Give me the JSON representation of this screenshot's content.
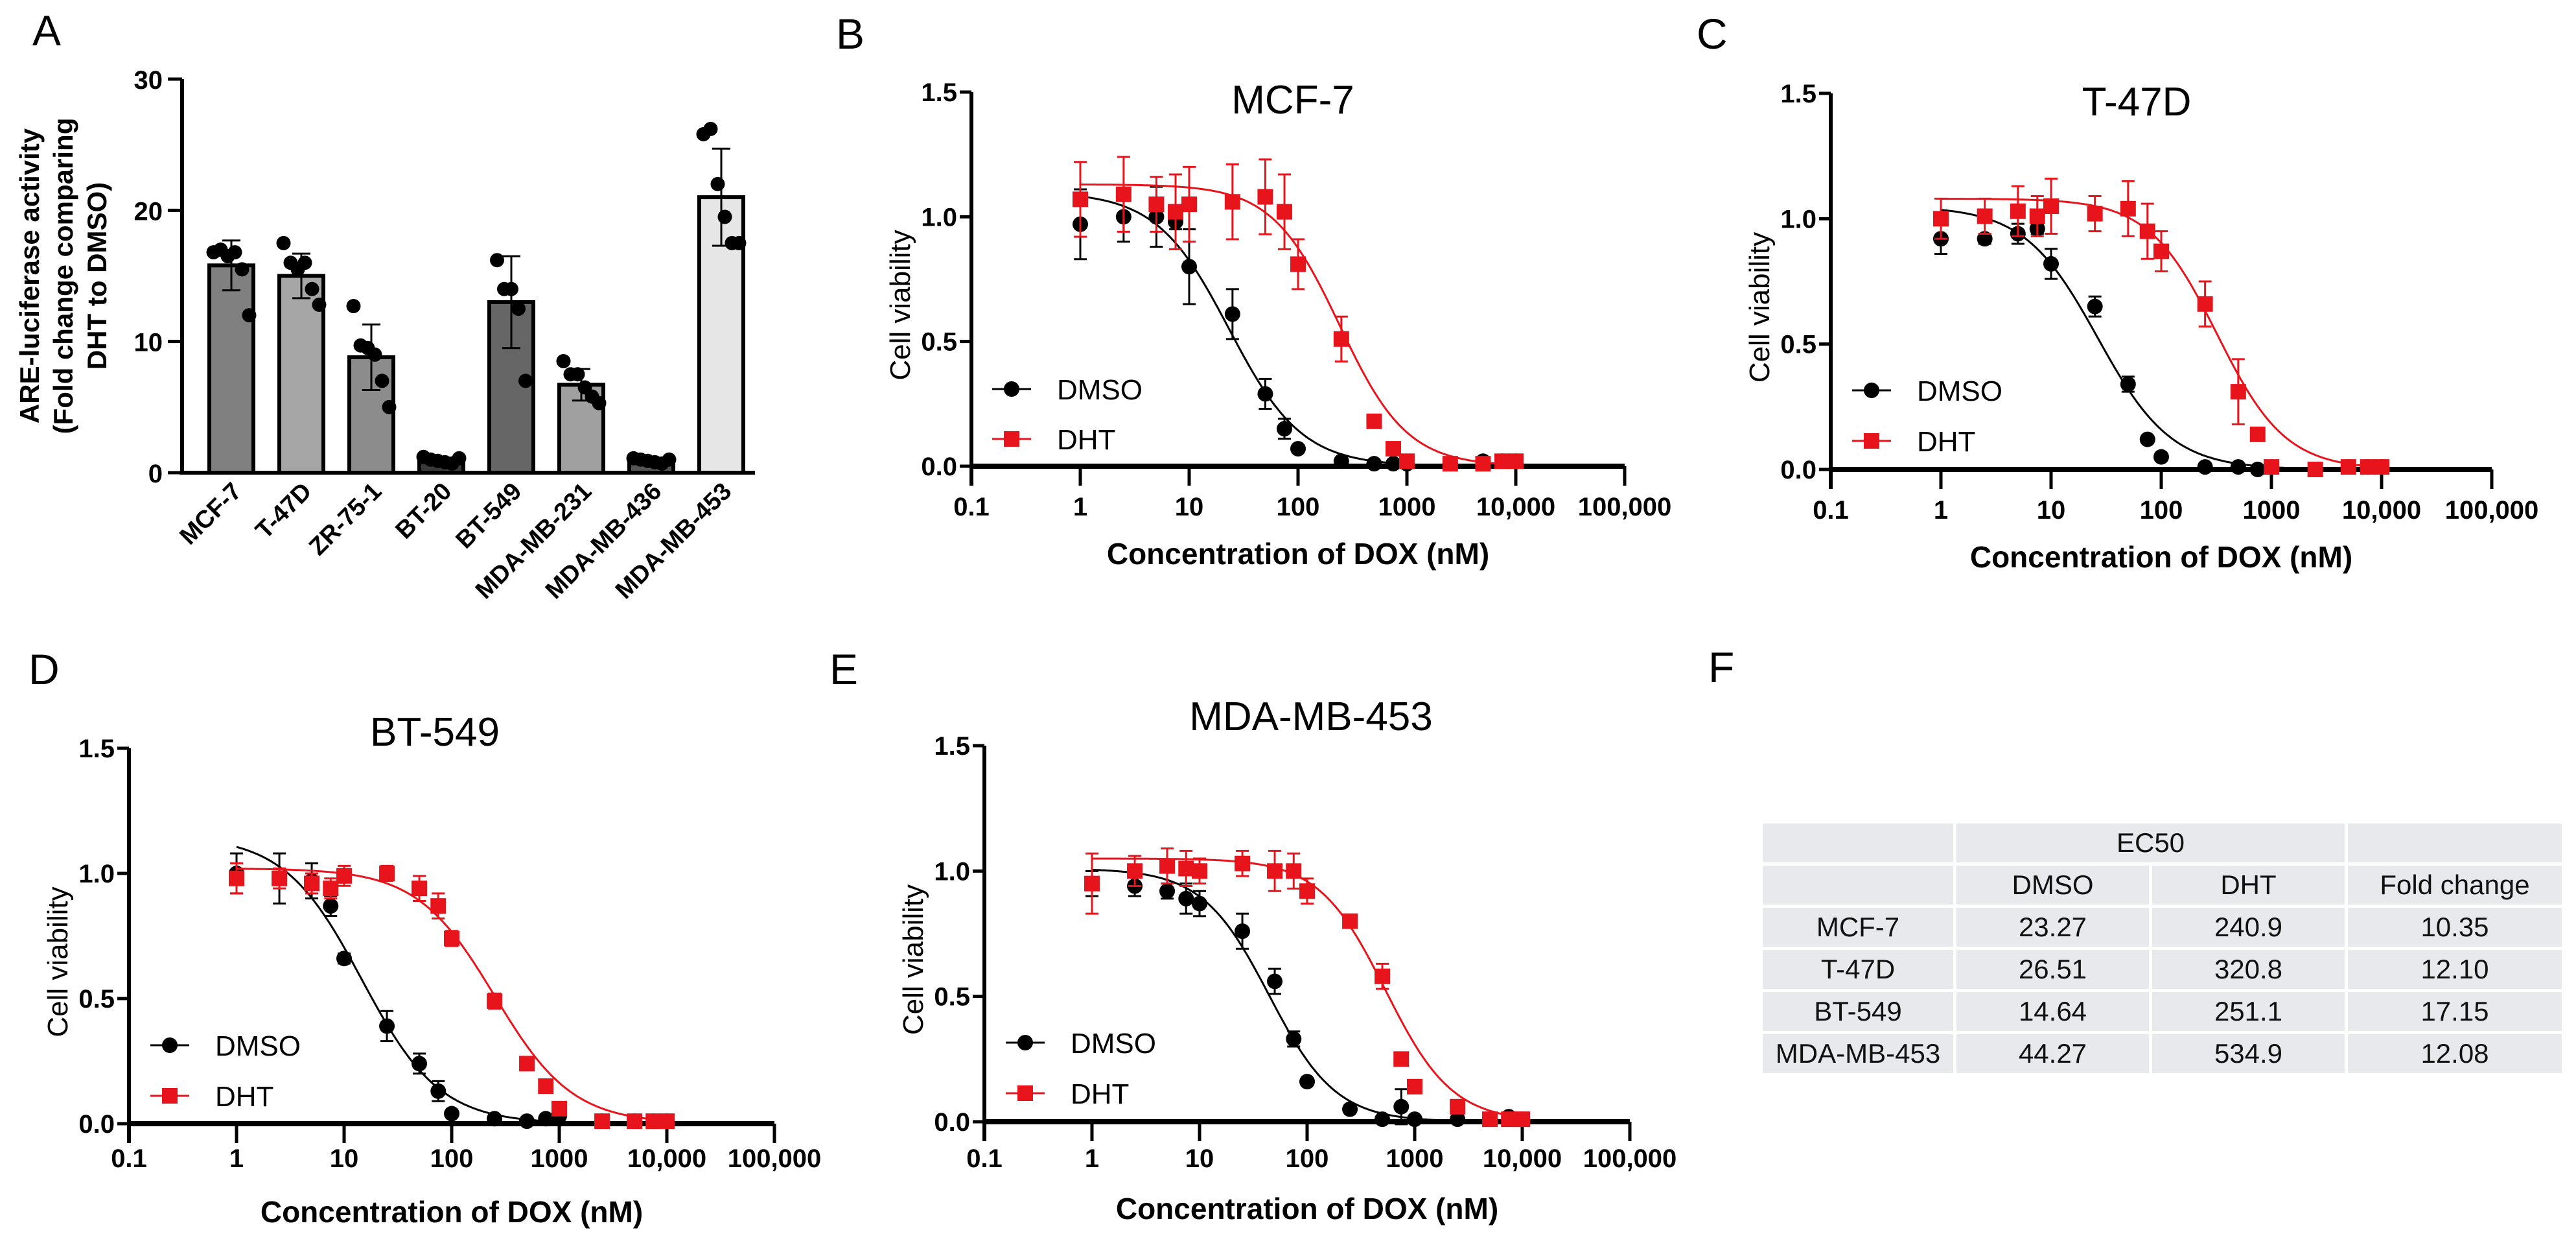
{
  "panel_letters": [
    "A",
    "B",
    "C",
    "D",
    "E",
    "F"
  ],
  "chart_data": [
    {
      "panel": "A",
      "type": "bar",
      "ylabel_lines": [
        "ARE-luciferase activity",
        "(Fold change comparing",
        "DHT to DMSO)"
      ],
      "ylim": [
        0,
        30
      ],
      "yticks": [
        "0",
        "10",
        "20",
        "30"
      ],
      "categories": [
        "MCF-7",
        "T-47D",
        "ZR-75-1",
        "BT-20",
        "BT-549",
        "MDA-MB-231",
        "MDA-MB-436",
        "MDA-MB-453"
      ],
      "values": [
        15.8,
        15.0,
        8.8,
        0.9,
        13.0,
        6.7,
        0.9,
        21.0
      ],
      "sd": [
        1.9,
        1.7,
        2.5,
        0.2,
        3.5,
        1.2,
        0.2,
        3.7
      ],
      "points": [
        [
          16.8,
          17.0,
          16.5,
          16.8,
          15.5,
          12.0
        ],
        [
          17.5,
          16.0,
          15.5,
          16.0,
          14.0,
          12.8
        ],
        [
          12.7,
          9.7,
          9.5,
          9.0,
          7.0,
          5.0
        ],
        [
          1.2,
          1.0,
          0.9,
          0.8,
          0.7,
          1.1
        ],
        [
          16.2,
          14.0,
          14.0,
          12.5,
          7.0
        ],
        [
          8.5,
          7.5,
          7.5,
          6.5,
          5.8,
          5.3
        ],
        [
          1.1,
          1.0,
          0.9,
          0.8,
          0.7,
          1.0
        ],
        [
          25.8,
          26.2,
          22.0,
          19.5,
          17.5,
          17.5
        ]
      ],
      "bar_colors": [
        "#808080",
        "#a6a6a6",
        "#8c8c8c",
        "#3a3a3a",
        "#666666",
        "#a0a0a0",
        "#555555",
        "#e6e6e6"
      ]
    },
    {
      "panel": "B",
      "type": "scatter",
      "title": "MCF-7",
      "xlabel": "Concentration of DOX (nM)",
      "ylabel": "Cell viability",
      "xscale": "log",
      "xlim": [
        0.1,
        100000
      ],
      "ylim": [
        0,
        1.5
      ],
      "xticks": [
        "0.1",
        "1",
        "10",
        "100",
        "1000",
        "10,000",
        "100,000"
      ],
      "yticks": [
        "0.0",
        "0.5",
        "1.0",
        "1.5"
      ],
      "legend": "left",
      "x": [
        1,
        2.5,
        5,
        7.5,
        10,
        25,
        50,
        75,
        100,
        250,
        500,
        750,
        1000,
        2500,
        5000,
        7500,
        10000
      ],
      "series": [
        {
          "name": "DMSO",
          "color": "#000000",
          "marker": "circle",
          "values": [
            0.97,
            1.0,
            1.0,
            0.98,
            0.8,
            0.61,
            0.29,
            0.15,
            0.07,
            0.02,
            0.01,
            0.01,
            0.01,
            0.01,
            0.02,
            0.02,
            0.02
          ],
          "err": [
            0.14,
            0.1,
            0.12,
            0.03,
            0.15,
            0.1,
            0.06,
            0.04,
            0.01,
            0.01,
            0.01,
            0.01,
            0.01,
            0.01,
            0.01,
            0.01,
            0.01
          ],
          "fit": {
            "top": 1.1,
            "bottom": 0,
            "ec50": 23.27,
            "hill": 1.3
          }
        },
        {
          "name": "DHT",
          "color": "#e8141c",
          "marker": "square",
          "values": [
            1.07,
            1.09,
            1.05,
            1.02,
            1.05,
            1.06,
            1.08,
            1.02,
            0.81,
            0.51,
            0.18,
            0.07,
            0.02,
            0.01,
            0.01,
            0.02,
            0.02
          ],
          "err": [
            0.15,
            0.15,
            0.11,
            0.15,
            0.15,
            0.15,
            0.15,
            0.15,
            0.1,
            0.09,
            0.02,
            0.02,
            0.01,
            0.01,
            0.01,
            0.01,
            0.01
          ],
          "fit": {
            "top": 1.13,
            "bottom": 0,
            "ec50": 240.9,
            "hill": 1.4
          }
        }
      ]
    },
    {
      "panel": "C",
      "type": "scatter",
      "title": "T-47D",
      "xlabel": "Concentration of DOX (nM)",
      "ylabel": "Cell viability",
      "xscale": "log",
      "xlim": [
        0.1,
        100000
      ],
      "ylim": [
        0,
        1.5
      ],
      "xticks": [
        "0.1",
        "1",
        "10",
        "100",
        "1000",
        "10,000",
        "100,000"
      ],
      "yticks": [
        "0.0",
        "0.5",
        "1.0",
        "1.5"
      ],
      "legend": "left",
      "x": [
        1,
        2.5,
        5,
        7.5,
        10,
        25,
        50,
        75,
        100,
        250,
        500,
        750,
        1000,
        2500,
        5000,
        7500,
        10000
      ],
      "series": [
        {
          "name": "DMSO",
          "color": "#000000",
          "marker": "circle",
          "values": [
            0.92,
            0.92,
            0.94,
            0.96,
            0.82,
            0.65,
            0.34,
            0.12,
            0.05,
            0.01,
            0.01,
            0.0,
            0.01,
            0.0,
            0.01,
            0.01,
            0.01
          ],
          "err": [
            0.06,
            0.02,
            0.04,
            0.02,
            0.06,
            0.04,
            0.03,
            0.01,
            0.01,
            0.01,
            0.01,
            0.01,
            0.01,
            0.01,
            0.01,
            0.01,
            0.01
          ],
          "fit": {
            "top": 1.05,
            "bottom": 0,
            "ec50": 26.51,
            "hill": 1.3
          }
        },
        {
          "name": "DHT",
          "color": "#e8141c",
          "marker": "square",
          "values": [
            1.0,
            1.01,
            1.03,
            1.01,
            1.05,
            1.02,
            1.04,
            0.95,
            0.87,
            0.66,
            0.31,
            0.14,
            0.01,
            0.0,
            0.01,
            0.01,
            0.01
          ],
          "err": [
            0.08,
            0.07,
            0.1,
            0.08,
            0.11,
            0.07,
            0.11,
            0.11,
            0.08,
            0.09,
            0.13,
            0.01,
            0.01,
            0.01,
            0.01,
            0.01,
            0.01
          ],
          "fit": {
            "top": 1.08,
            "bottom": 0,
            "ec50": 320.8,
            "hill": 1.4
          }
        }
      ]
    },
    {
      "panel": "D",
      "type": "scatter",
      "title": "BT-549",
      "xlabel": "Concentration of DOX (nM)",
      "ylabel": "Cell viability",
      "xscale": "log",
      "xlim": [
        0.1,
        100000
      ],
      "ylim": [
        0,
        1.5
      ],
      "xticks": [
        "0.1",
        "1",
        "10",
        "100",
        "1000",
        "10,000",
        "100,000"
      ],
      "yticks": [
        "0.0",
        "0.5",
        "1.0",
        "1.5"
      ],
      "legend": "left",
      "x": [
        1,
        2.5,
        5,
        7.5,
        10,
        25,
        50,
        75,
        100,
        250,
        500,
        750,
        1000,
        2500,
        5000,
        7500,
        10000
      ],
      "series": [
        {
          "name": "DMSO",
          "color": "#000000",
          "marker": "circle",
          "values": [
            1.0,
            0.98,
            0.97,
            0.87,
            0.66,
            0.39,
            0.24,
            0.13,
            0.04,
            0.02,
            0.01,
            0.02,
            0.03,
            0.01,
            0.01,
            0.01,
            0.01
          ],
          "err": [
            0.08,
            0.1,
            0.07,
            0.04,
            0.02,
            0.06,
            0.04,
            0.04,
            0.01,
            0.01,
            0.01,
            0.01,
            0.01,
            0.01,
            0.01,
            0.01,
            0.01
          ],
          "fit": {
            "top": 1.15,
            "bottom": 0,
            "ec50": 14.64,
            "hill": 1.2
          }
        },
        {
          "name": "DHT",
          "color": "#e8141c",
          "marker": "square",
          "values": [
            0.98,
            0.98,
            0.96,
            0.94,
            0.99,
            1.0,
            0.94,
            0.87,
            0.74,
            0.49,
            0.24,
            0.15,
            0.06,
            0.01,
            0.01,
            0.01,
            0.01
          ],
          "err": [
            0.06,
            0.04,
            0.04,
            0.04,
            0.04,
            0.03,
            0.05,
            0.05,
            0.03,
            0.03,
            0.02,
            0.02,
            0.02,
            0.01,
            0.01,
            0.01,
            0.01
          ],
          "fit": {
            "top": 1.02,
            "bottom": 0,
            "ec50": 251.1,
            "hill": 1.2
          }
        }
      ]
    },
    {
      "panel": "E",
      "type": "scatter",
      "title": "MDA-MB-453",
      "xlabel": "Concentration of DOX (nM)",
      "ylabel": "Cell viability",
      "xscale": "log",
      "xlim": [
        0.1,
        100000
      ],
      "ylim": [
        0,
        1.5
      ],
      "xticks": [
        "0.1",
        "1",
        "10",
        "100",
        "1000",
        "10,000",
        "100,000"
      ],
      "yticks": [
        "0.0",
        "0.5",
        "1.0",
        "1.5"
      ],
      "legend": "left",
      "x": [
        1,
        2.5,
        5,
        7.5,
        10,
        25,
        50,
        75,
        100,
        250,
        500,
        750,
        1000,
        2500,
        5000,
        7500,
        10000
      ],
      "series": [
        {
          "name": "DMSO",
          "color": "#000000",
          "marker": "circle",
          "values": [
            0.95,
            0.94,
            0.92,
            0.89,
            0.87,
            0.76,
            0.56,
            0.33,
            0.16,
            0.05,
            0.01,
            0.06,
            0.01,
            0.01,
            0.01,
            0.02,
            0.01
          ],
          "err": [
            0.05,
            0.04,
            0.03,
            0.06,
            0.05,
            0.07,
            0.05,
            0.03,
            0.01,
            0.01,
            0.01,
            0.07,
            0.01,
            0.01,
            0.01,
            0.01,
            0.01
          ],
          "fit": {
            "top": 1.01,
            "bottom": 0,
            "ec50": 44.27,
            "hill": 1.4
          }
        },
        {
          "name": "DHT",
          "color": "#e8141c",
          "marker": "square",
          "values": [
            0.95,
            1.0,
            1.02,
            1.01,
            1.0,
            1.03,
            1.0,
            1.0,
            0.92,
            0.8,
            0.58,
            0.25,
            0.14,
            0.06,
            0.01,
            0.01,
            0.01
          ],
          "err": [
            0.12,
            0.06,
            0.07,
            0.07,
            0.05,
            0.05,
            0.08,
            0.07,
            0.05,
            0.02,
            0.05,
            0.02,
            0.02,
            0.02,
            0.01,
            0.01,
            0.01
          ],
          "fit": {
            "top": 1.05,
            "bottom": 0,
            "ec50": 534.9,
            "hill": 1.4
          }
        }
      ]
    },
    {
      "panel": "F",
      "type": "table",
      "group_header": "EC50",
      "columns": [
        "",
        "DMSO",
        "DHT",
        "Fold change"
      ],
      "rows": [
        [
          "MCF-7",
          "23.27",
          "240.9",
          "10.35"
        ],
        [
          "T-47D",
          "26.51",
          "320.8",
          "12.10"
        ],
        [
          "BT-549",
          "14.64",
          "251.1",
          "17.15"
        ],
        [
          "MDA-MB-453",
          "44.27",
          "534.9",
          "12.08"
        ]
      ]
    }
  ]
}
